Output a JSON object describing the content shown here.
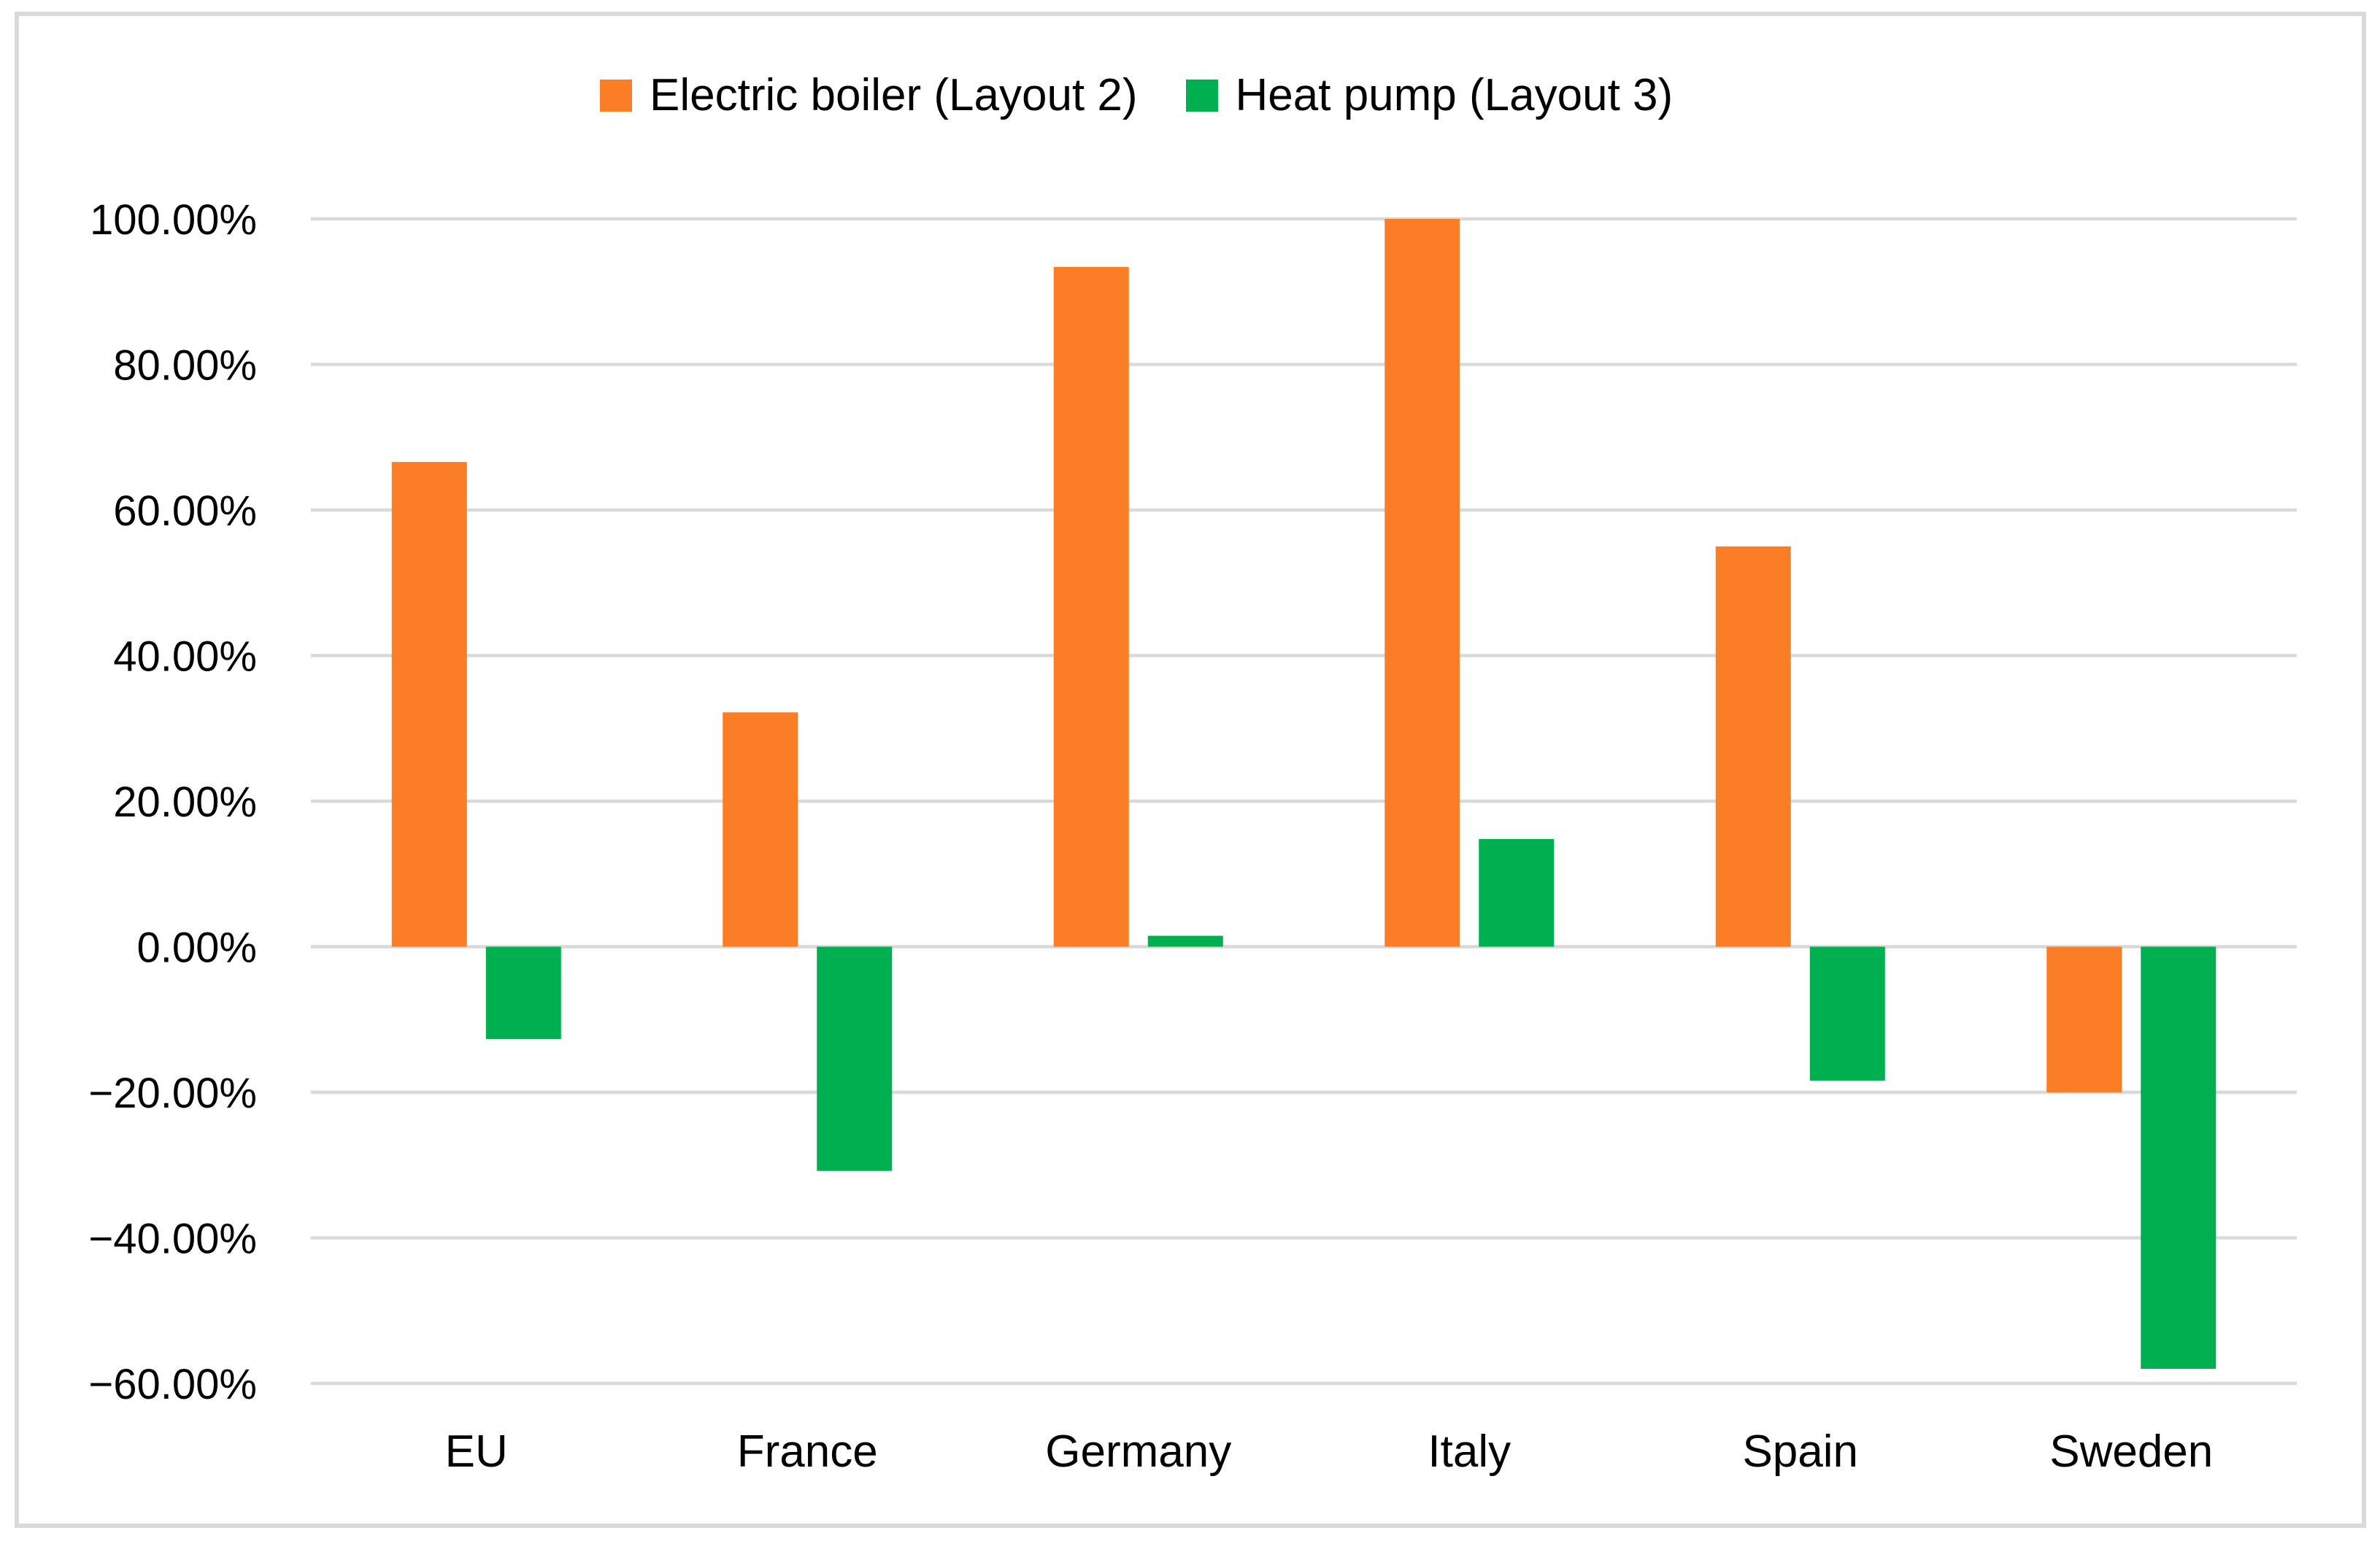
{
  "figure": {
    "title": "",
    "border_color": "#d9d9d9"
  },
  "chart_data": {
    "type": "bar",
    "title": "",
    "xlabel": "",
    "ylabel": "",
    "categories": [
      "EU",
      "France",
      "Germany",
      "Italy",
      "Spain",
      "Sweden"
    ],
    "series": [
      {
        "name": "Electric boiler (Layout 2)",
        "color": "#fb7d26",
        "values": [
          66.6,
          32.2,
          93.4,
          100.0,
          55.0,
          -20.0
        ]
      },
      {
        "name": "Heat pump (Layout 3)",
        "color": "#00b050",
        "values": [
          -12.7,
          -30.8,
          1.5,
          14.8,
          -18.4,
          -58.0
        ]
      }
    ],
    "y_axis": {
      "min": -60,
      "max": 100,
      "step": 20,
      "tick_labels": [
        "100.00%",
        "80.00%",
        "60.00%",
        "40.00%",
        "20.00%",
        "0.00%",
        "−20.00%",
        "−40.00%",
        "−60.00%"
      ]
    },
    "ylim": [
      -60,
      100
    ],
    "grid": true,
    "legend_position": "top-center",
    "colors": {
      "gridline": "#d9d9d9",
      "text": "#000000",
      "background": "#ffffff"
    }
  }
}
